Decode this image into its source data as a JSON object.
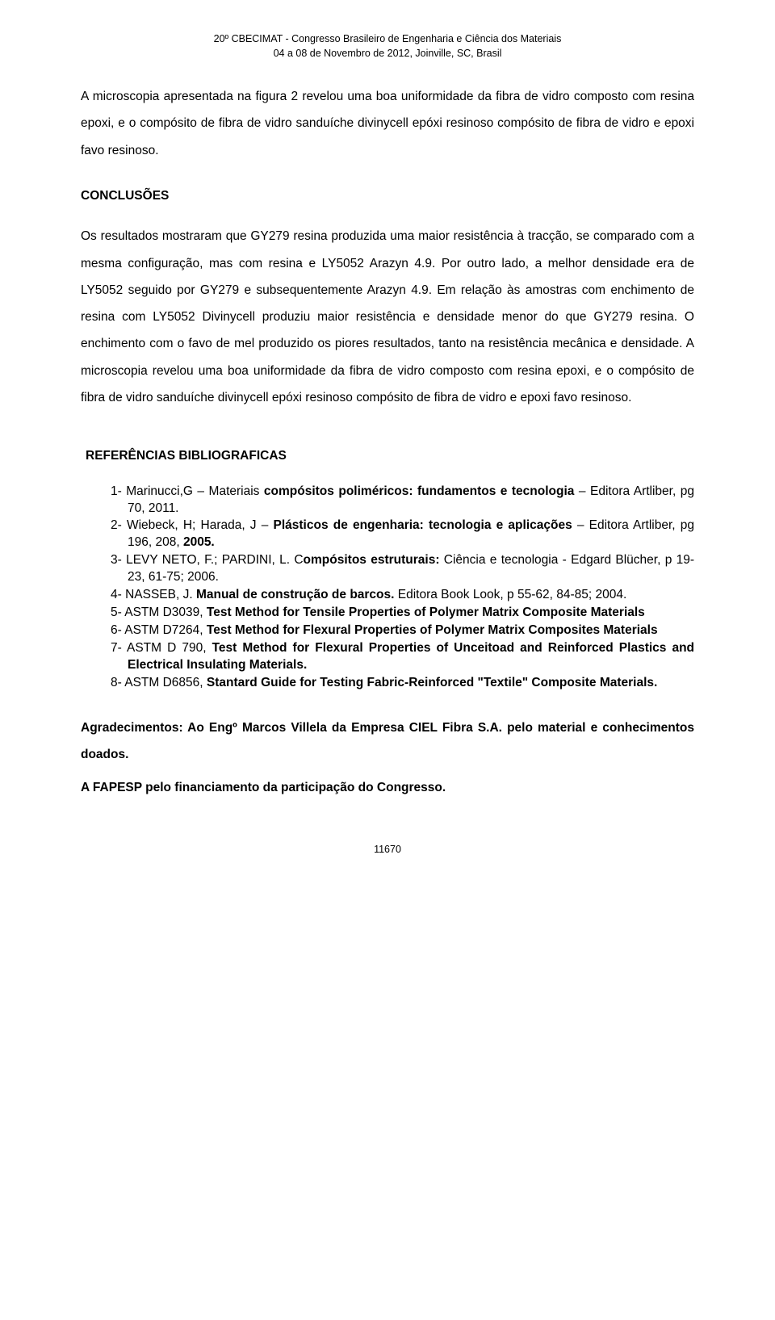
{
  "header": {
    "line1": "20º CBECIMAT - Congresso Brasileiro de Engenharia e Ciência dos Materiais",
    "line2": "04 a 08 de Novembro de 2012, Joinville, SC, Brasil"
  },
  "intro_paragraph": "A microscopia apresentada na figura 2 revelou uma boa uniformidade da fibra de vidro composto com resina epoxi, e o compósito de fibra de vidro sanduíche divinycell epóxi resinoso compósito de fibra de vidro e epoxi favo resinoso.",
  "conclusions": {
    "title": "CONCLUSÕES",
    "text": "Os resultados mostraram que GY279 resina produzida uma maior resistência à tracção, se comparado com a mesma configuração, mas com resina e LY5052 Arazyn 4.9. Por outro lado, a melhor densidade era de LY5052 seguido por GY279 e subsequentemente Arazyn 4.9. Em relação às amostras com enchimento de resina com LY5052 Divinycell produziu maior resistência e densidade menor do que GY279 resina. O enchimento com o favo de mel produzido os piores resultados, tanto na resistência mecânica e densidade. A microscopia revelou uma boa uniformidade da fibra de vidro composto com resina epoxi, e o compósito de fibra de vidro sanduíche divinycell epóxi resinoso compósito de fibra de vidro e epoxi favo resinoso."
  },
  "references": {
    "title": "REFERÊNCIAS BIBLIOGRAFICAS",
    "items": [
      {
        "num": "1-",
        "pre": "Marinucci,G – Materiais ",
        "bold1": "compósitos poliméricos: fundamentos e tecnologia",
        "post1": " – Editora Artliber, pg 70, 2011."
      },
      {
        "num": "2-",
        "pre": "Wiebeck, H; Harada, J – ",
        "bold1": "Plásticos de engenharia: tecnologia e aplicações",
        "post1": " – Editora Artliber, pg 196, 208, ",
        "bold2": "2005."
      },
      {
        "num": "3-",
        "pre": "LEVY NETO, F.; PARDINI, L. C",
        "bold1": "ompósitos estruturais: ",
        "post1": " Ciência e tecnologia - Edgard Blücher,  p 19-23, 61-75; 2006."
      },
      {
        "num": "4-",
        "pre": "NASSEB, J. ",
        "bold1": "Manual de construção de barcos.",
        "post1": " Editora Book Look, p 55-62, 84-85; 2004."
      },
      {
        "num": "5-",
        "pre": "ASTM D3039, ",
        "bold1": "Test Method for Tensile Properties of Polymer Matrix Composite Materials"
      },
      {
        "num": "6-",
        "pre": "ASTM D7264, ",
        "bold1": "Test Method for  Flexural Properties of Polymer Matrix Composites Materials"
      },
      {
        "num": "7-",
        "pre": "ASTM D 790, ",
        "bold1": "Test Method for Flexural Properties of Unceitoad and Reinforced Plastics and Electrical Insulating Materials."
      },
      {
        "num": "8-",
        "pre": "ASTM D6856, ",
        "bold1": "Stantard Guide for Testing Fabric-Reinforced \"Textile\" Composite Materials."
      }
    ]
  },
  "acknowledgments": {
    "label": "Agradecimentos:",
    "text_bold": "   Ao Engº Marcos Villela da Empresa CIEL Fibra S.A. pelo material e conhecimentos doados."
  },
  "final": {
    "text": "A FAPESP pelo financiamento da participação do Congresso."
  },
  "page_number": "11670",
  "colors": {
    "text": "#000000",
    "background": "#ffffff"
  },
  "typography": {
    "body_fontsize": 15.5,
    "header_fontsize": 12.5,
    "pagenum_fontsize": 12.5,
    "font_family": "Arial"
  }
}
